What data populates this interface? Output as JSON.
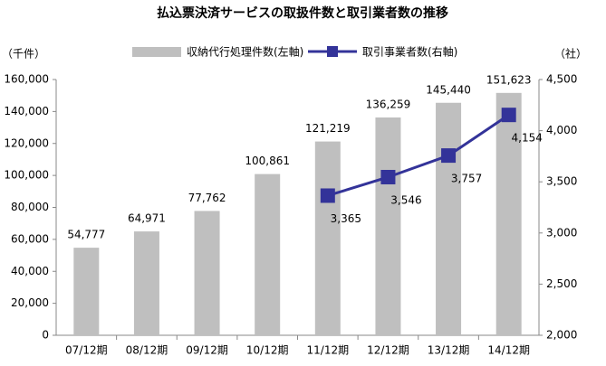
{
  "chart_data": {
    "type": "combo",
    "title": "払込票決済サービスの取扱件数と取引業者数の推移",
    "y_label": "（千件）",
    "y2_label": "（社）",
    "categories": [
      "07/12期",
      "08/12期",
      "09/12期",
      "10/12期",
      "11/12期",
      "12/12期",
      "13/12期",
      "14/12期"
    ],
    "series": [
      {
        "name": "収納代行処理件数(左軸)",
        "type": "bar",
        "color": "#bfbfbf",
        "values": [
          54777,
          64971,
          77762,
          100861,
          121219,
          136259,
          145440,
          151623
        ],
        "value_labels": [
          "54,777",
          "64,971",
          "77,762",
          "100,861",
          "121,219",
          "136,259",
          "145,440",
          "151,623"
        ]
      },
      {
        "name": "取引事業者数(右軸)",
        "type": "line",
        "axis": "y2",
        "color": "#333399",
        "values": [
          null,
          null,
          null,
          null,
          3365,
          3546,
          3757,
          4154
        ],
        "value_labels": [
          null,
          null,
          null,
          null,
          "3,365",
          "3,546",
          "3,757",
          "4,154"
        ]
      }
    ],
    "ylim": [
      0,
      160000
    ],
    "yticks": [
      0,
      {
        "value": 20000,
        "label": "20,000"
      },
      {
        "value": 40000,
        "label": "40,000"
      },
      {
        "value": 60000,
        "label": "60,000"
      },
      {
        "value": 80000,
        "label": "80,000"
      },
      {
        "value": 100000,
        "label": "100,000"
      },
      {
        "value": 120000,
        "label": "120,000"
      },
      {
        "value": 140000,
        "label": "140,000"
      },
      {
        "value": 160000,
        "label": "160,000"
      }
    ],
    "y2lim": [
      2000,
      4500
    ],
    "y2ticks": [
      {
        "value": 2000,
        "label": "2,000"
      },
      {
        "value": 2500,
        "label": "2,500"
      },
      {
        "value": 3000,
        "label": "3,000"
      },
      {
        "value": 3500,
        "label": "3,500"
      },
      {
        "value": 4000,
        "label": "4,000"
      },
      {
        "value": 4500,
        "label": "4,500"
      }
    ],
    "grid": false,
    "legend": "top"
  }
}
